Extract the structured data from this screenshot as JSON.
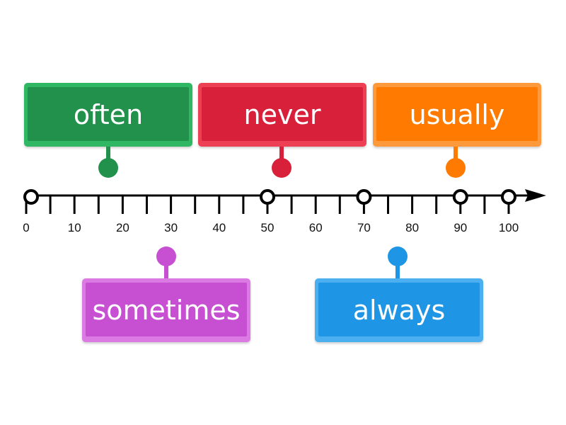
{
  "number_line": {
    "min": 0,
    "max": 100,
    "tick_step": 5,
    "tick_labels": [
      "0",
      "10",
      "20",
      "30",
      "40",
      "50",
      "60",
      "70",
      "80",
      "90",
      "100"
    ],
    "drop_targets": [
      0,
      50,
      70,
      90,
      100
    ]
  },
  "labels": [
    {
      "id": "often",
      "text": "often",
      "color": "#22914c",
      "light": "#2fb763",
      "points_to": 17
    },
    {
      "id": "never",
      "text": "never",
      "color": "#d8203a",
      "light": "#ee4055",
      "points_to": 53
    },
    {
      "id": "usually",
      "text": "usually",
      "color": "#ff7a00",
      "light": "#ff9a3c",
      "points_to": 89
    },
    {
      "id": "sometimes",
      "text": "sometimes",
      "color": "#c64fd2",
      "light": "#dc7ae4",
      "points_to": 29
    },
    {
      "id": "always",
      "text": "always",
      "color": "#1f95e6",
      "light": "#4cb0f0",
      "points_to": 77
    }
  ]
}
